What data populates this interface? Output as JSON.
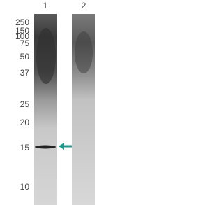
{
  "lanes": [
    "1",
    "2"
  ],
  "markers": [
    "250",
    "150",
    "100",
    "75",
    "50",
    "37",
    "25",
    "20",
    "15",
    "10"
  ]
}
